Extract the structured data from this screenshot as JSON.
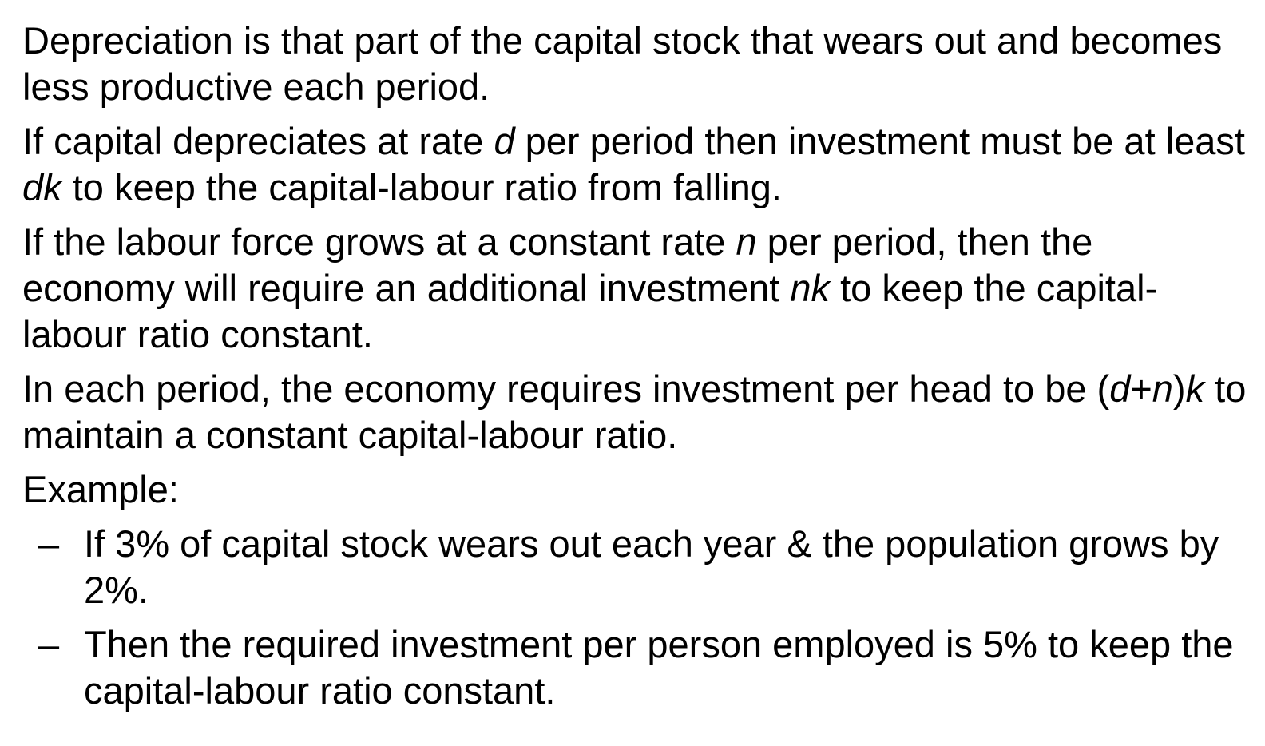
{
  "paragraphs": [
    {
      "segments": [
        {
          "text": "Depreciation is that part of the capital stock that wears out and becomes less productive each period.",
          "italic": false
        }
      ]
    },
    {
      "segments": [
        {
          "text": "If capital depreciates at rate ",
          "italic": false
        },
        {
          "text": "d",
          "italic": true
        },
        {
          "text": " per period then investment must be at least ",
          "italic": false
        },
        {
          "text": "dk",
          "italic": true
        },
        {
          "text": " to keep the capital-labour ratio from falling.",
          "italic": false
        }
      ]
    },
    {
      "segments": [
        {
          "text": "If the labour force grows at a constant rate ",
          "italic": false
        },
        {
          "text": "n",
          "italic": true
        },
        {
          "text": " per period, then the economy will require an additional investment ",
          "italic": false
        },
        {
          "text": "nk",
          "italic": true
        },
        {
          "text": " to keep the capital-labour ratio constant.",
          "italic": false
        }
      ]
    },
    {
      "segments": [
        {
          "text": "In each period, the economy requires investment per head to be (",
          "italic": false
        },
        {
          "text": "d",
          "italic": true
        },
        {
          "text": "+",
          "italic": false
        },
        {
          "text": "n",
          "italic": true
        },
        {
          "text": ")",
          "italic": false
        },
        {
          "text": "k",
          "italic": true
        },
        {
          "text": " to maintain a constant capital-labour ratio.",
          "italic": false
        }
      ]
    },
    {
      "segments": [
        {
          "text": "Example:",
          "italic": false
        }
      ]
    }
  ],
  "example_items": [
    {
      "bullet": "–",
      "text": "If 3% of capital stock wears out each year & the population grows by 2%."
    },
    {
      "bullet": "–",
      "text": "Then the required investment per person employed is 5% to keep the capital-labour ratio constant."
    }
  ]
}
